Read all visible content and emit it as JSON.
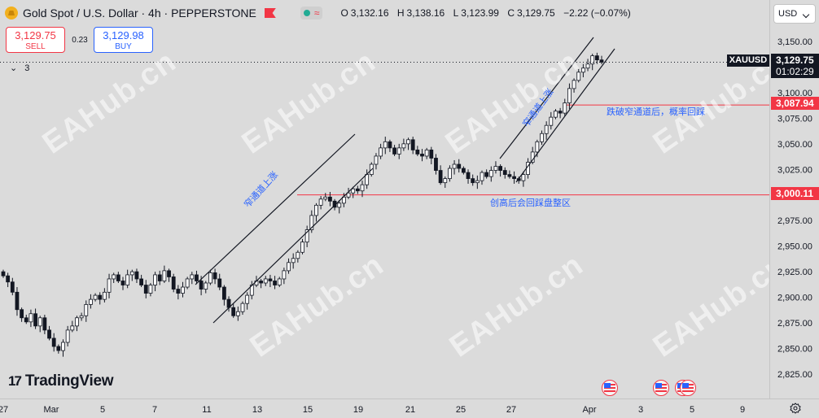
{
  "header": {
    "title": "Gold Spot / U.S. Dollar · 4h · PEPPERSTONE",
    "ohlc": {
      "open_label": "O",
      "open": "3,132.16",
      "high_label": "H",
      "high": "3,138.16",
      "low_label": "L",
      "low": "3,123.99",
      "close_label": "C",
      "close": "3,129.75",
      "change": "−2.22 (−0.07%)"
    },
    "wave_icon": "≈"
  },
  "trade": {
    "sell_price": "3,129.75",
    "sell_label": "SELL",
    "spread": "0.23",
    "buy_price": "3,129.98",
    "buy_label": "BUY"
  },
  "indicators_count": "3",
  "currency": "USD",
  "logo_text": "TradingView",
  "logo_mark": "17",
  "watermark": "EAHub.cn",
  "annotations": {
    "channel_1": "窄通道上涨",
    "channel_2": "窄通道上涨",
    "break_note": "跌破窄通道后，概率回踩",
    "range_note": "创高后会回踩盘整区"
  },
  "price_tags": {
    "symbol": "XAUUSD",
    "current": "3,129.75",
    "countdown": "01:02:29",
    "level_high": "3,087.94",
    "level_low": "3,000.11"
  },
  "colors": {
    "up": "#ffffff",
    "down": "#131722",
    "wick": "#131722",
    "level_line": "#f23645",
    "annotation": "#2962ff",
    "background": "#dbdbdb"
  },
  "chart_data": {
    "type": "candlestick",
    "timeframe": "4h",
    "symbol": "XAUUSD",
    "y_ticks": [
      3150,
      3125,
      3100,
      3075,
      3050,
      3025,
      3000,
      2975,
      2950,
      2925,
      2900,
      2875,
      2850,
      2825
    ],
    "y_tick_labels": [
      "3,150.00",
      "3,125.00",
      "3,100.00",
      "3,075.00",
      "3,050.00",
      "3,025.00",
      "3,000.00",
      "2,975.00",
      "2,950.00",
      "2,925.00",
      "2,900.00",
      "2,875.00",
      "2,850.00",
      "2,825.00"
    ],
    "x_tick_labels": [
      "27",
      "Mar",
      "5",
      "7",
      "11",
      "13",
      "15",
      "19",
      "21",
      "25",
      "27",
      "Apr",
      "3",
      "5",
      "9"
    ],
    "horizontal_levels": [
      3087.94,
      3000.11
    ],
    "closes": [
      2921,
      2915,
      2905,
      2888,
      2880,
      2876,
      2884,
      2872,
      2880,
      2868,
      2860,
      2852,
      2848,
      2856,
      2868,
      2872,
      2880,
      2882,
      2893,
      2898,
      2902,
      2898,
      2905,
      2918,
      2922,
      2916,
      2912,
      2922,
      2925,
      2918,
      2912,
      2904,
      2912,
      2922,
      2916,
      2926,
      2920,
      2908,
      2904,
      2910,
      2918,
      2922,
      2916,
      2908,
      2914,
      2924,
      2918,
      2910,
      2898,
      2890,
      2882,
      2886,
      2894,
      2902,
      2912,
      2916,
      2914,
      2918,
      2916,
      2912,
      2918,
      2926,
      2934,
      2938,
      2944,
      2954,
      2966,
      2980,
      2990,
      2996,
      2998,
      2994,
      2988,
      2992,
      2998,
      3002,
      3006,
      3004,
      3010,
      3020,
      3030,
      3038,
      3046,
      3052,
      3046,
      3040,
      3046,
      3050,
      3054,
      3044,
      3040,
      3038,
      3044,
      3036,
      3024,
      3012,
      3016,
      3026,
      3030,
      3026,
      3022,
      3016,
      3012,
      3014,
      3022,
      3018,
      3024,
      3028,
      3024,
      3020,
      3018,
      3016,
      3014,
      3020,
      3032,
      3042,
      3052,
      3060,
      3068,
      3076,
      3082,
      3080,
      3090,
      3104,
      3112,
      3120,
      3124,
      3128,
      3136,
      3132,
      3129.75
    ]
  }
}
